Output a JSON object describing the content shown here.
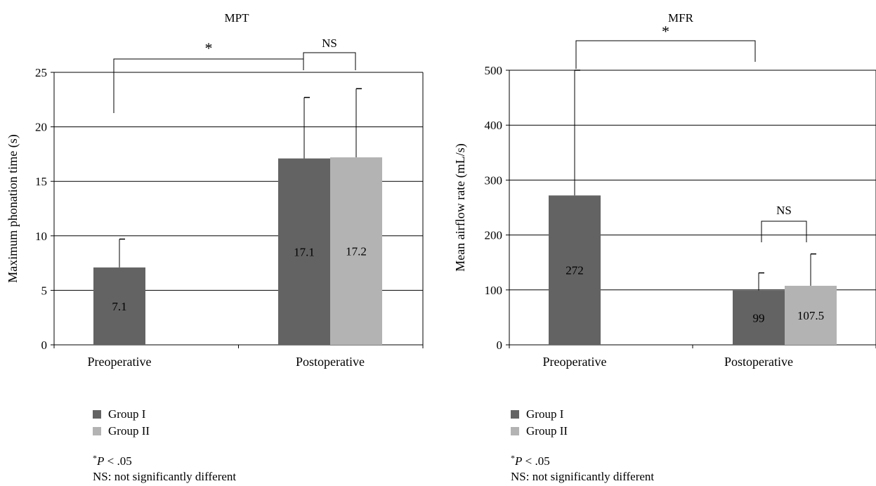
{
  "charts": [
    {
      "colors": {
        "group1": "#636363",
        "group2": "#b3b3b3"
      },
      "legend": [
        {
          "label": "Group I",
          "color": "#636363"
        },
        {
          "label": "Group II",
          "color": "#b3b3b3"
        }
      ],
      "notes": {
        "star": "*",
        "p": "P",
        "p_rest": " < .05",
        "ns": "NS: not significantly different"
      }
    },
    {
      "colors": {
        "group1": "#636363",
        "group2": "#b3b3b3"
      },
      "legend": [
        {
          "label": "Group I",
          "color": "#636363"
        },
        {
          "label": "Group II",
          "color": "#b3b3b3"
        }
      ],
      "notes": {
        "star": "*",
        "p": "P",
        "p_rest": " < .05",
        "ns": "NS: not significantly different"
      }
    }
  ],
  "chart_data": [
    {
      "type": "bar",
      "title": "MPT",
      "ylabel": "Maximum phonation time (s)",
      "xlabel": "",
      "ylim": [
        0,
        25
      ],
      "yticks": [
        0,
        5,
        10,
        15,
        20,
        25
      ],
      "grid": true,
      "legend_position": "bottom-left",
      "categories": [
        "Preoperative",
        "Postoperative"
      ],
      "bars": [
        {
          "category": "Preoperative",
          "group": "Group I",
          "value": 7.1,
          "error": 2.6,
          "label": "7.1"
        },
        {
          "category": "Postoperative",
          "group": "Group I",
          "value": 17.1,
          "error": 5.6,
          "label": "17.1"
        },
        {
          "category": "Postoperative",
          "group": "Group II",
          "value": 17.2,
          "error": 6.3,
          "label": "17.2"
        }
      ],
      "annotations": [
        {
          "text": "*",
          "from": "Preoperative / Group I",
          "to": "Postoperative / Group I"
        },
        {
          "text": "NS",
          "from": "Postoperative / Group I",
          "to": "Postoperative / Group II"
        }
      ]
    },
    {
      "type": "bar",
      "title": "MFR",
      "ylabel": "Mean airflow rate (mL/s)",
      "xlabel": "",
      "ylim": [
        0,
        500
      ],
      "yticks": [
        0,
        100,
        200,
        300,
        400,
        500
      ],
      "grid": true,
      "legend_position": "bottom-left",
      "categories": [
        "Preoperative",
        "Postoperative"
      ],
      "bars": [
        {
          "category": "Preoperative",
          "group": "Group I",
          "value": 272,
          "error": 228,
          "label": "272"
        },
        {
          "category": "Postoperative",
          "group": "Group I",
          "value": 99,
          "error": 32,
          "label": "99"
        },
        {
          "category": "Postoperative",
          "group": "Group II",
          "value": 107.5,
          "error": 58,
          "label": "107.5"
        }
      ],
      "annotations": [
        {
          "text": "*",
          "from": "Preoperative / Group I",
          "to": "Postoperative / Group I"
        },
        {
          "text": "NS",
          "from": "Postoperative / Group I",
          "to": "Postoperative / Group II"
        }
      ]
    }
  ]
}
